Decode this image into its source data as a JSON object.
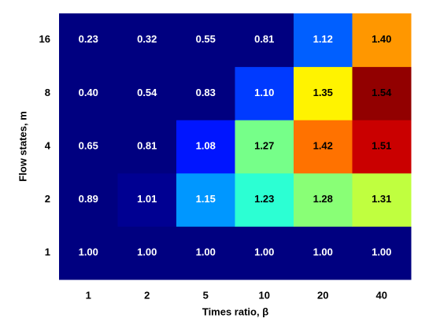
{
  "chart_data": {
    "type": "heatmap",
    "x_label": "Times ratio, β",
    "y_label": "Flow states, m",
    "categories": [
      "1",
      "2",
      "5",
      "10",
      "20",
      "40"
    ],
    "y_categories": [
      "1",
      "2",
      "4",
      "8",
      "16"
    ],
    "values": [
      [
        1.0,
        1.0,
        1.0,
        1.0,
        1.0,
        1.0
      ],
      [
        0.89,
        1.01,
        1.15,
        1.23,
        1.28,
        1.31
      ],
      [
        0.65,
        0.81,
        1.08,
        1.27,
        1.42,
        1.51
      ],
      [
        0.4,
        0.54,
        0.83,
        1.1,
        1.35,
        1.54
      ],
      [
        0.23,
        0.32,
        0.55,
        0.81,
        1.12,
        1.4
      ]
    ],
    "value_labels": [
      [
        "1.00",
        "1.00",
        "1.00",
        "1.00",
        "1.00",
        "1.00"
      ],
      [
        "0.89",
        "1.01",
        "1.15",
        "1.23",
        "1.28",
        "1.31"
      ],
      [
        "0.65",
        "0.81",
        "1.08",
        "1.27",
        "1.42",
        "1.51"
      ],
      [
        "0.40",
        "0.54",
        "0.83",
        "1.10",
        "1.35",
        "1.54"
      ],
      [
        "0.23",
        "0.32",
        "0.55",
        "0.81",
        "1.12",
        "1.40"
      ]
    ],
    "colormap": "jet",
    "clim": [
      1.0,
      1.55
    ]
  }
}
